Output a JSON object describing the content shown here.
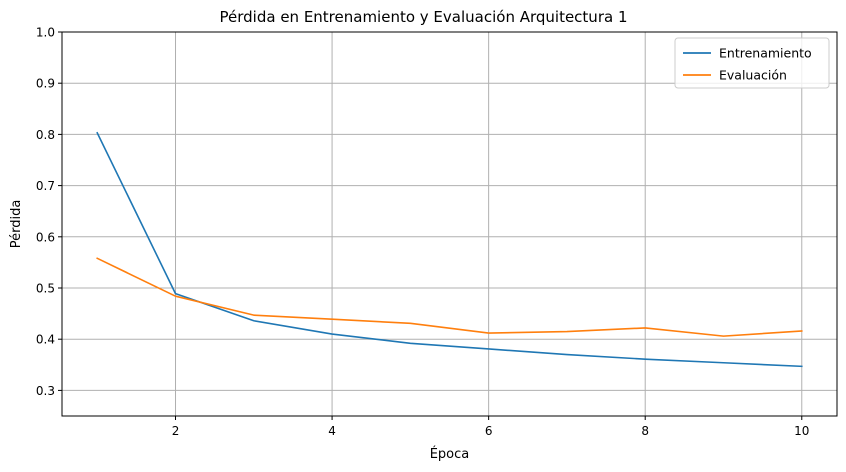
{
  "chart_data": {
    "type": "line",
    "title": "Pérdida en Entrenamiento y Evaluación Arquitectura 1",
    "xlabel": "Época",
    "ylabel": "Pérdida",
    "xlim": [
      0.55,
      10.45
    ],
    "ylim": [
      0.25,
      1.0
    ],
    "xticks": [
      2,
      4,
      6,
      8,
      10
    ],
    "yticks": [
      0.3,
      0.4,
      0.5,
      0.6,
      0.7,
      0.8,
      0.9,
      1.0
    ],
    "grid": true,
    "legend_position": "top-right",
    "x": [
      1,
      2,
      3,
      4,
      5,
      6,
      7,
      8,
      9,
      10
    ],
    "series": [
      {
        "name": "Entrenamiento",
        "color": "#1f77b4",
        "values": [
          0.803,
          0.489,
          0.436,
          0.41,
          0.392,
          0.381,
          0.37,
          0.361,
          0.354,
          0.347
        ]
      },
      {
        "name": "Evaluación",
        "color": "#ff7f0e",
        "values": [
          0.558,
          0.484,
          0.447,
          0.439,
          0.431,
          0.412,
          0.415,
          0.422,
          0.406,
          0.416
        ]
      }
    ]
  }
}
